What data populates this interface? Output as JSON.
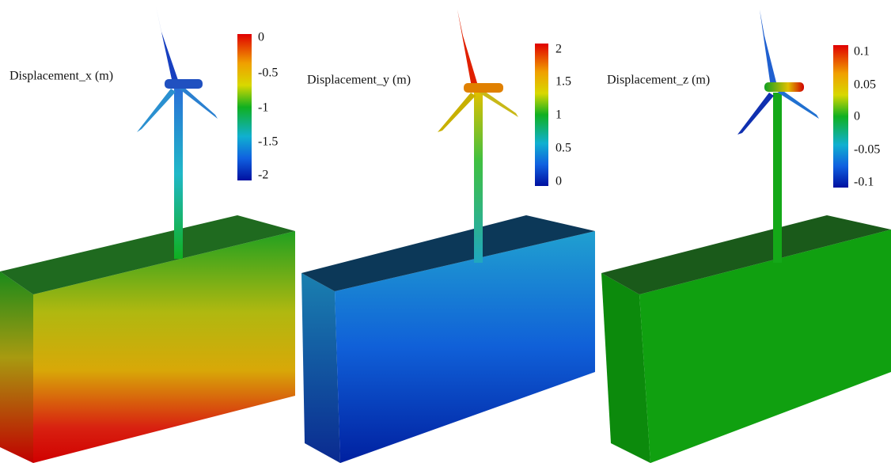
{
  "panels": [
    {
      "title": "Displacement_x (m)",
      "colorbar": {
        "ticks": [
          "0",
          "-0.5",
          "-1",
          "-1.5",
          "-2"
        ]
      }
    },
    {
      "title": "Displacement_y (m)",
      "colorbar": {
        "ticks": [
          "2",
          "1.5",
          "1",
          "0.5",
          "0"
        ]
      }
    },
    {
      "title": "Displacement_z (m)",
      "colorbar": {
        "ticks": [
          "0.1",
          "0.05",
          "0",
          "-0.05",
          "-0.1"
        ]
      }
    }
  ]
}
